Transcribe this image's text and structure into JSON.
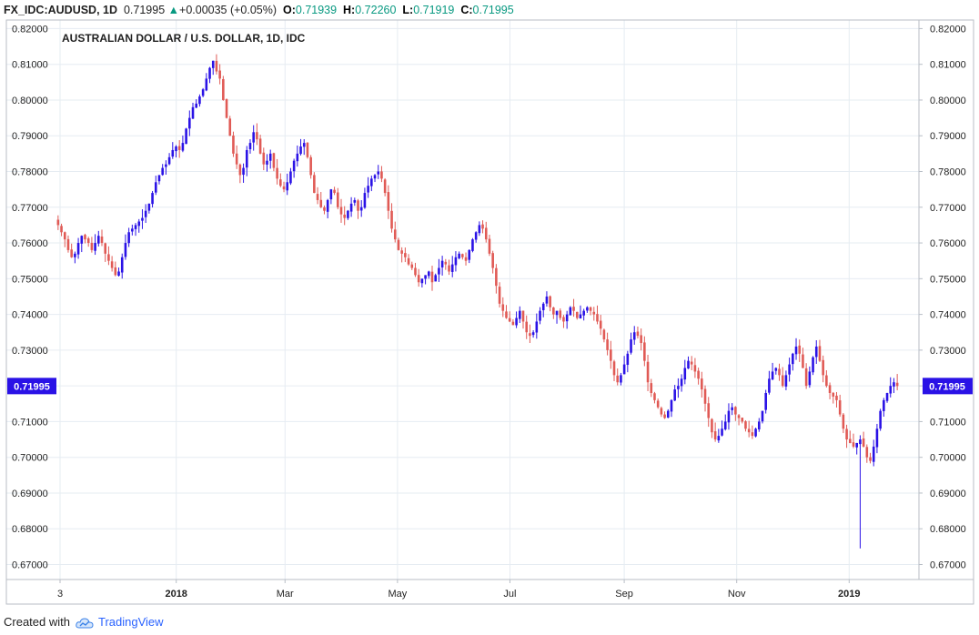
{
  "header": {
    "symbol": "FX_IDC:AUDUSD, 1D",
    "last": "0.71995",
    "change_arrow": "▲",
    "change": "+0.00035 (+0.05%)",
    "o_label": "O:",
    "o_value": "0.71939",
    "h_label": "H:",
    "h_value": "0.72260",
    "l_label": "L:",
    "l_value": "0.71919",
    "c_label": "C:",
    "c_value": "0.71995"
  },
  "footer": {
    "created_with": "Created with",
    "brand": "TradingView",
    "brand_icon": "tradingview-cloud-icon"
  },
  "colors": {
    "up": "#2a12e6",
    "down": "#e05a55",
    "last_price_bg": "#2a12e6",
    "grid": "#e6ecf2",
    "text": "#1f1f1f",
    "header_value": "#089981"
  },
  "chart_data": {
    "type": "candlestick",
    "title": "AUSTRALIAN DOLLAR / U.S. DOLLAR, 1D, IDC",
    "ylim": [
      0.6658,
      0.8224
    ],
    "y_ticks": [
      "0.82000",
      "0.81000",
      "0.80000",
      "0.79000",
      "0.78000",
      "0.77000",
      "0.76000",
      "0.75000",
      "0.74000",
      "0.73000",
      "0.72000",
      "0.71000",
      "0.70000",
      "0.69000",
      "0.68000",
      "0.67000"
    ],
    "x_ticks": [
      {
        "label": "3",
        "bold": false,
        "date": "2017-11-03"
      },
      {
        "label": "2018",
        "bold": true,
        "date": "2018-01-01"
      },
      {
        "label": "Mar",
        "bold": false,
        "date": "2018-03-01"
      },
      {
        "label": "May",
        "bold": false,
        "date": "2018-05-01"
      },
      {
        "label": "Jul",
        "bold": false,
        "date": "2018-07-01"
      },
      {
        "label": "Sep",
        "bold": false,
        "date": "2018-09-01"
      },
      {
        "label": "Nov",
        "bold": false,
        "date": "2018-11-01"
      },
      {
        "label": "2019",
        "bold": true,
        "date": "2019-01-01"
      }
    ],
    "last_price_label": "0.71995",
    "last_price": 0.71995,
    "grid": true,
    "closes_approx": [
      0.765,
      0.763,
      0.761,
      0.758,
      0.756,
      0.757,
      0.76,
      0.762,
      0.761,
      0.76,
      0.758,
      0.76,
      0.762,
      0.76,
      0.757,
      0.755,
      0.753,
      0.751,
      0.752,
      0.756,
      0.76,
      0.763,
      0.764,
      0.765,
      0.766,
      0.767,
      0.769,
      0.771,
      0.774,
      0.777,
      0.779,
      0.781,
      0.782,
      0.784,
      0.786,
      0.787,
      0.786,
      0.788,
      0.792,
      0.795,
      0.798,
      0.799,
      0.801,
      0.803,
      0.806,
      0.809,
      0.811,
      0.808,
      0.806,
      0.8,
      0.795,
      0.79,
      0.785,
      0.782,
      0.779,
      0.781,
      0.786,
      0.788,
      0.791,
      0.789,
      0.785,
      0.782,
      0.783,
      0.785,
      0.781,
      0.778,
      0.776,
      0.775,
      0.777,
      0.78,
      0.783,
      0.785,
      0.787,
      0.788,
      0.784,
      0.779,
      0.774,
      0.772,
      0.77,
      0.769,
      0.772,
      0.775,
      0.774,
      0.77,
      0.768,
      0.767,
      0.769,
      0.771,
      0.772,
      0.769,
      0.77,
      0.774,
      0.776,
      0.778,
      0.779,
      0.78,
      0.778,
      0.774,
      0.769,
      0.764,
      0.761,
      0.758,
      0.757,
      0.756,
      0.754,
      0.753,
      0.751,
      0.749,
      0.75,
      0.751,
      0.752,
      0.749,
      0.751,
      0.753,
      0.755,
      0.754,
      0.752,
      0.754,
      0.756,
      0.757,
      0.756,
      0.755,
      0.758,
      0.761,
      0.763,
      0.765,
      0.764,
      0.761,
      0.757,
      0.753,
      0.748,
      0.743,
      0.741,
      0.739,
      0.738,
      0.737,
      0.739,
      0.741,
      0.738,
      0.735,
      0.734,
      0.735,
      0.738,
      0.741,
      0.743,
      0.745,
      0.742,
      0.74,
      0.741,
      0.739,
      0.738,
      0.74,
      0.742,
      0.741,
      0.739,
      0.74,
      0.741,
      0.742,
      0.741,
      0.74,
      0.738,
      0.736,
      0.733,
      0.73,
      0.727,
      0.723,
      0.721,
      0.723,
      0.726,
      0.729,
      0.733,
      0.735,
      0.734,
      0.732,
      0.727,
      0.721,
      0.718,
      0.716,
      0.714,
      0.712,
      0.711,
      0.713,
      0.716,
      0.719,
      0.72,
      0.722,
      0.725,
      0.727,
      0.726,
      0.724,
      0.722,
      0.719,
      0.715,
      0.711,
      0.707,
      0.705,
      0.706,
      0.708,
      0.71,
      0.713,
      0.714,
      0.712,
      0.711,
      0.71,
      0.708,
      0.707,
      0.706,
      0.708,
      0.71,
      0.713,
      0.718,
      0.722,
      0.724,
      0.725,
      0.723,
      0.72,
      0.723,
      0.726,
      0.729,
      0.731,
      0.729,
      0.725,
      0.72,
      0.724,
      0.728,
      0.731,
      0.727,
      0.723,
      0.72,
      0.718,
      0.717,
      0.716,
      0.712,
      0.708,
      0.705,
      0.704,
      0.703,
      0.704,
      0.705,
      0.703,
      0.7,
      0.699,
      0.703,
      0.708,
      0.713,
      0.716,
      0.718,
      0.72,
      0.721,
      0.71995
    ]
  }
}
